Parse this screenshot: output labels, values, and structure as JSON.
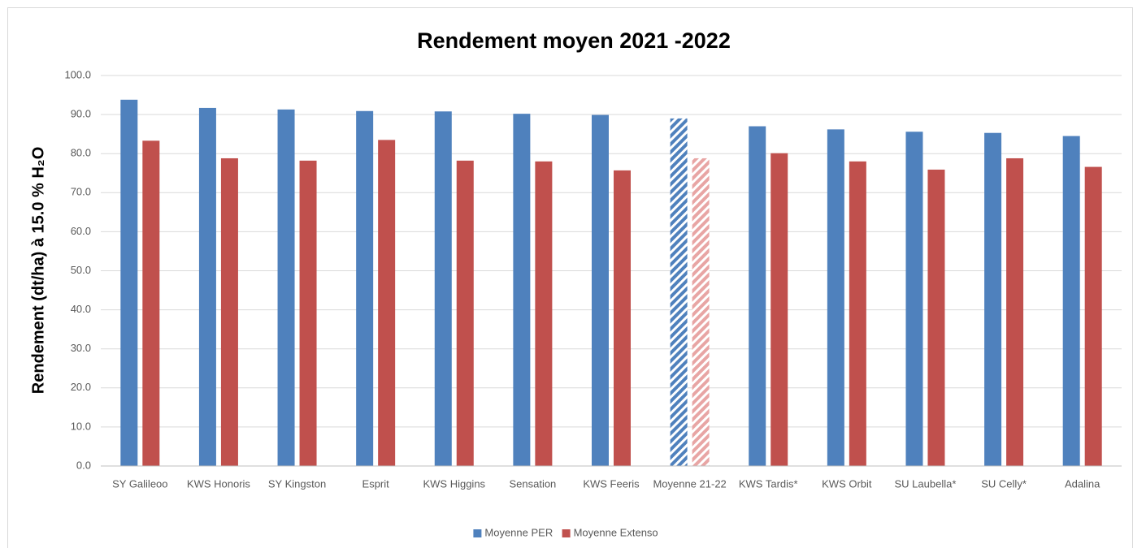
{
  "chart_data": {
    "type": "bar",
    "title": "Rendement moyen 2021 -2022",
    "y_label": "Rendement (dt/ha) à 15.0  % H₂O",
    "categories": [
      "SY Galileoo",
      "KWS Honoris",
      "SY Kingston",
      "Esprit",
      "KWS Higgins",
      "Sensation",
      "KWS Feeris",
      "Moyenne 21-22",
      "KWS Tardis*",
      "KWS Orbit",
      "SU Laubella*",
      "SU Celly*",
      "Adalina"
    ],
    "series": [
      {
        "name": "Moyenne PER",
        "color": "#4f81bd",
        "values": [
          93.8,
          91.7,
          91.3,
          90.9,
          90.8,
          90.2,
          89.9,
          89.0,
          87.0,
          86.2,
          85.6,
          85.3,
          84.5
        ]
      },
      {
        "name": "Moyenne Extenso",
        "color": "#c0504d",
        "values": [
          83.3,
          78.8,
          78.2,
          83.5,
          78.2,
          78.0,
          75.7,
          78.8,
          80.1,
          78.0,
          75.9,
          78.8,
          76.6
        ]
      }
    ],
    "hatched_categories": [
      "Moyenne 21-22"
    ],
    "ylim": [
      0,
      100
    ],
    "yticks": [
      {
        "value": 0,
        "label": "0.0"
      },
      {
        "value": 10,
        "label": "10.0"
      },
      {
        "value": 20,
        "label": "20.0"
      },
      {
        "value": 30,
        "label": "30.0"
      },
      {
        "value": 40,
        "label": "40.0"
      },
      {
        "value": 50,
        "label": "50.0"
      },
      {
        "value": 60,
        "label": "60.0"
      },
      {
        "value": 70,
        "label": "70.0"
      },
      {
        "value": 80,
        "label": "80.0"
      },
      {
        "value": 90,
        "label": "90.0"
      },
      {
        "value": 100,
        "label": "100.0"
      }
    ],
    "grid": true,
    "legend": "bottom"
  }
}
